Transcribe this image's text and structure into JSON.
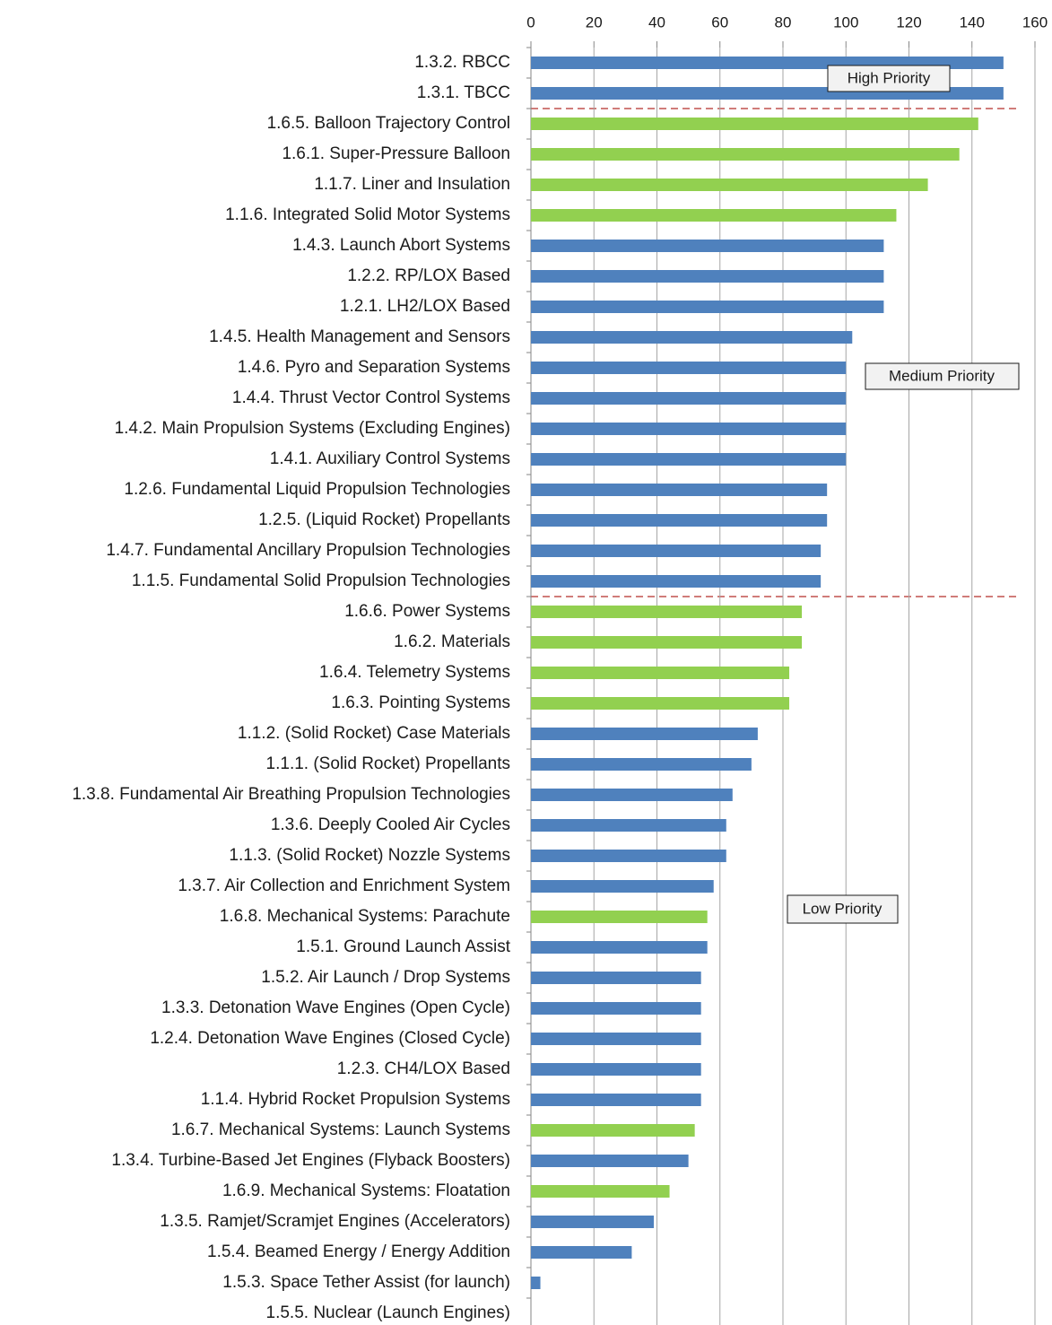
{
  "chart_data": {
    "type": "bar",
    "orientation": "horizontal",
    "categories": [
      "1.3.2. RBCC",
      "1.3.1. TBCC",
      "1.6.5. Balloon Trajectory Control",
      "1.6.1. Super-Pressure Balloon",
      "1.1.7. Liner and Insulation",
      "1.1.6. Integrated Solid Motor Systems",
      "1.4.3. Launch Abort Systems",
      "1.2.2. RP/LOX Based",
      "1.2.1. LH2/LOX Based",
      "1.4.5. Health Management and Sensors",
      "1.4.6. Pyro and Separation Systems",
      "1.4.4. Thrust Vector Control Systems",
      "1.4.2. Main Propulsion Systems (Excluding Engines)",
      "1.4.1. Auxiliary Control Systems",
      "1.2.6. Fundamental Liquid Propulsion Technologies",
      "1.2.5. (Liquid Rocket) Propellants",
      "1.4.7. Fundamental Ancillary Propulsion Technologies",
      "1.1.5. Fundamental Solid Propulsion Technologies",
      "1.6.6. Power Systems",
      "1.6.2. Materials",
      "1.6.4. Telemetry Systems",
      "1.6.3. Pointing Systems",
      "1.1.2. (Solid Rocket) Case Materials",
      "1.1.1. (Solid Rocket) Propellants",
      "1.3.8. Fundamental Air Breathing Propulsion Technologies",
      "1.3.6. Deeply Cooled Air Cycles",
      "1.1.3. (Solid Rocket) Nozzle Systems",
      "1.3.7. Air Collection and Enrichment System",
      "1.6.8. Mechanical Systems: Parachute",
      "1.5.1. Ground Launch Assist",
      "1.5.2. Air Launch / Drop Systems",
      "1.3.3. Detonation Wave Engines (Open Cycle)",
      "1.2.4. Detonation Wave Engines (Closed Cycle)",
      "1.2.3. CH4/LOX Based",
      "1.1.4. Hybrid Rocket Propulsion Systems",
      "1.6.7. Mechanical Systems: Launch Systems",
      "1.3.4. Turbine-Based Jet Engines (Flyback Boosters)",
      "1.6.9. Mechanical Systems: Floatation",
      "1.3.5. Ramjet/Scramjet Engines (Accelerators)",
      "1.5.4. Beamed Energy / Energy Addition",
      "1.5.3. Space Tether Assist (for launch)",
      "1.5.5. Nuclear (Launch Engines)"
    ],
    "values": [
      150,
      150,
      142,
      136,
      126,
      116,
      112,
      112,
      112,
      102,
      100,
      100,
      100,
      100,
      94,
      94,
      92,
      92,
      86,
      86,
      82,
      82,
      72,
      70,
      64,
      62,
      62,
      58,
      56,
      56,
      54,
      54,
      54,
      54,
      54,
      52,
      50,
      44,
      39,
      32,
      3,
      0
    ],
    "colors": [
      "#4f81bd",
      "#4f81bd",
      "#92d050",
      "#92d050",
      "#92d050",
      "#92d050",
      "#4f81bd",
      "#4f81bd",
      "#4f81bd",
      "#4f81bd",
      "#4f81bd",
      "#4f81bd",
      "#4f81bd",
      "#4f81bd",
      "#4f81bd",
      "#4f81bd",
      "#4f81bd",
      "#4f81bd",
      "#92d050",
      "#92d050",
      "#92d050",
      "#92d050",
      "#4f81bd",
      "#4f81bd",
      "#4f81bd",
      "#4f81bd",
      "#4f81bd",
      "#4f81bd",
      "#92d050",
      "#4f81bd",
      "#4f81bd",
      "#4f81bd",
      "#4f81bd",
      "#4f81bd",
      "#4f81bd",
      "#92d050",
      "#4f81bd",
      "#92d050",
      "#4f81bd",
      "#4f81bd",
      "#4f81bd",
      "#4f81bd"
    ],
    "xlim": [
      0,
      160
    ],
    "xticks": [
      0,
      20,
      40,
      60,
      80,
      100,
      120,
      140,
      160
    ],
    "grid": true,
    "annotations": [
      "High Priority",
      "Medium Priority",
      "Low Priority"
    ]
  }
}
